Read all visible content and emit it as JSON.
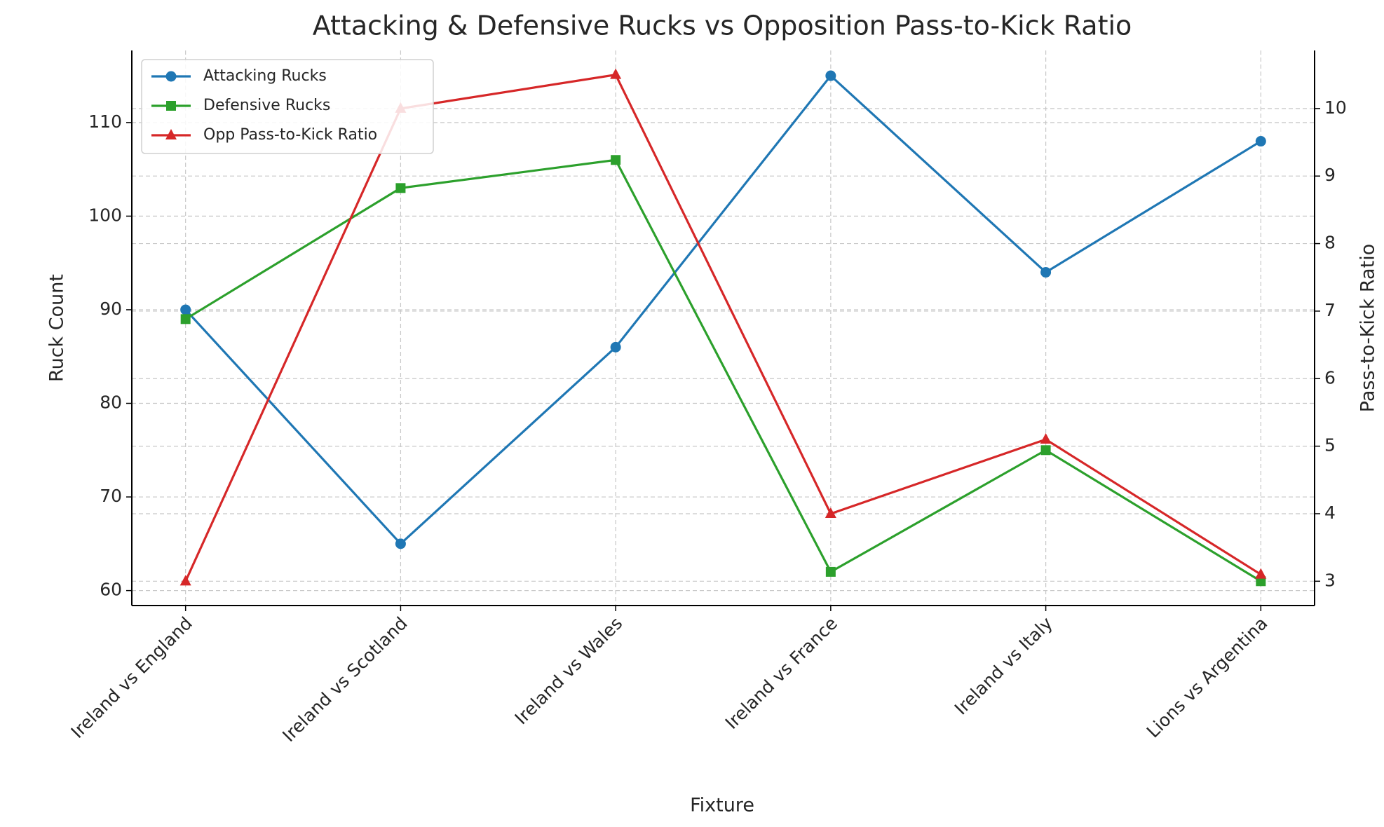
{
  "chart_data": {
    "type": "line",
    "title": "Attacking & Defensive Rucks vs Opposition Pass-to-Kick Ratio",
    "x_label": "Fixture",
    "y_label": "Ruck Count",
    "y2_label": "Pass-to-Kick Ratio",
    "categories": [
      "Ireland vs England",
      "Ireland vs Scotland",
      "Ireland vs Wales",
      "Ireland vs France",
      "Ireland vs Italy",
      "Lions vs Argentina"
    ],
    "series": [
      {
        "name": "Attacking Rucks",
        "color": "#1f77b4",
        "marker": "circle",
        "values": [
          90,
          65,
          86,
          115,
          94,
          108
        ]
      },
      {
        "name": "Defensive Rucks",
        "color": "#2ca02c",
        "marker": "square",
        "values": [
          89,
          103,
          106,
          62,
          75,
          61
        ]
      },
      {
        "name": "Opp Pass-to-Kick Ratio",
        "color": "#d62728",
        "marker": "triangle",
        "axis": "y2",
        "values": [
          3.0,
          10.0,
          10.5,
          4.0,
          5.1,
          3.1
        ]
      }
    ],
    "ylim": [
      58.4,
      117.7
    ],
    "yticks": [
      60,
      70,
      80,
      90,
      100,
      110
    ],
    "y2lim": [
      2.64,
      10.86
    ],
    "y2ticks": [
      3,
      4,
      5,
      6,
      7,
      8,
      9,
      10
    ],
    "grid": true,
    "legend": "upper left"
  }
}
